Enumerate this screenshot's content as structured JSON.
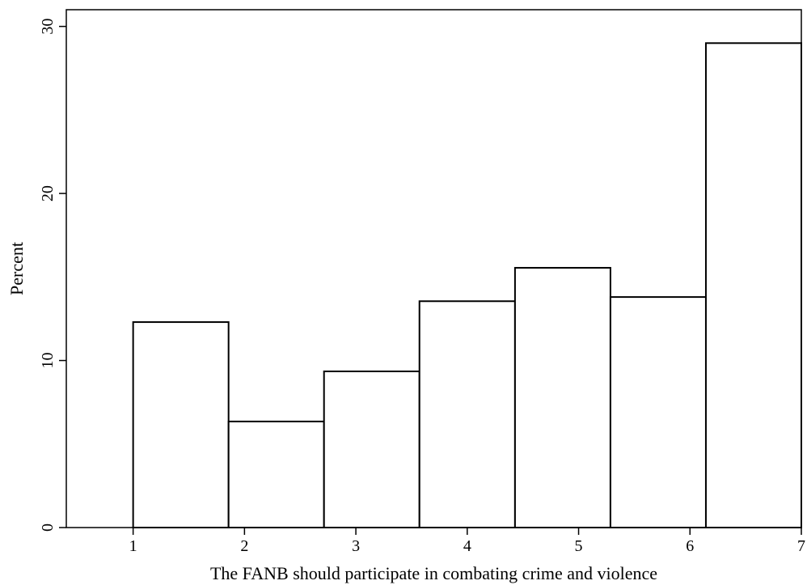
{
  "chart_data": {
    "type": "bar",
    "title": "",
    "xlabel": "The FANB should participate in combating crime and violence",
    "ylabel": "Percent",
    "x_range": [
      0.4,
      7
    ],
    "ylim": [
      0,
      31
    ],
    "x_ticks": [
      1,
      2,
      3,
      4,
      5,
      6,
      7
    ],
    "y_ticks": [
      0,
      10,
      20,
      30
    ],
    "grid": false,
    "legend": "none",
    "bar_fill": "#ffffff",
    "bar_stroke": "#000000",
    "bins": [
      {
        "start": 1.0,
        "end": 1.857,
        "value": 12.3
      },
      {
        "start": 1.857,
        "end": 2.714,
        "value": 6.35
      },
      {
        "start": 2.714,
        "end": 3.571,
        "value": 9.35
      },
      {
        "start": 3.571,
        "end": 4.429,
        "value": 13.55
      },
      {
        "start": 4.429,
        "end": 5.286,
        "value": 15.55
      },
      {
        "start": 5.286,
        "end": 6.143,
        "value": 13.8
      },
      {
        "start": 6.143,
        "end": 7.0,
        "value": 29.0
      }
    ]
  }
}
